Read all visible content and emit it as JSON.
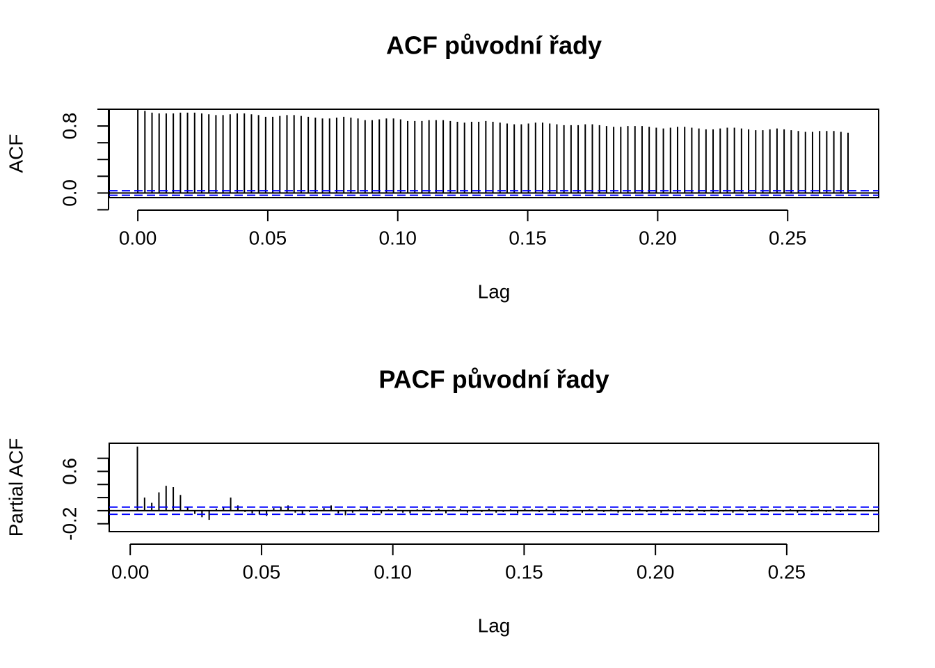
{
  "chart_data": [
    {
      "type": "bar",
      "title": "ACF původní řady",
      "xlabel": "Lag",
      "ylabel": "ACF",
      "xlim": [
        -0.011,
        0.285
      ],
      "ylim": [
        -0.055,
        1.0
      ],
      "x_ticks": [
        "0.00",
        "0.05",
        "0.10",
        "0.15",
        "0.20",
        "0.25"
      ],
      "y_ticks": [
        "0.0",
        "0.8"
      ],
      "confidence_band": 0.027,
      "x": [
        0,
        0.002732,
        0.005464,
        0.008197,
        0.010929,
        0.013661,
        0.016393,
        0.019126,
        0.021858,
        0.02459,
        0.027322,
        0.030055,
        0.032787,
        0.035519,
        0.038251,
        0.040984,
        0.043716,
        0.046448,
        0.04918,
        0.051913,
        0.054645,
        0.057377,
        0.060109,
        0.062842,
        0.065574,
        0.068306,
        0.071038,
        0.073771,
        0.076503,
        0.079235,
        0.081967,
        0.084699,
        0.087432,
        0.090164,
        0.092896,
        0.095628,
        0.098361,
        0.101093,
        0.103825,
        0.106557,
        0.10929,
        0.112022,
        0.114754,
        0.117486,
        0.120219,
        0.122951,
        0.125683,
        0.128415,
        0.131148,
        0.13388,
        0.136612,
        0.139344,
        0.142077,
        0.144809,
        0.147541,
        0.150273,
        0.153005,
        0.155738,
        0.15847,
        0.161202,
        0.163934,
        0.166667,
        0.169399,
        0.172131,
        0.174863,
        0.177596,
        0.180328,
        0.18306,
        0.185792,
        0.188525,
        0.191257,
        0.193989,
        0.196721,
        0.199454,
        0.202186,
        0.204918,
        0.20765,
        0.210383,
        0.213115,
        0.215847,
        0.218579,
        0.221311,
        0.224044,
        0.226776,
        0.229508,
        0.23224,
        0.234973,
        0.237705,
        0.240437,
        0.243169,
        0.245902,
        0.248634,
        0.251366,
        0.254098,
        0.256831,
        0.259563,
        0.262295,
        0.265027,
        0.26776,
        0.270492,
        0.273224
      ],
      "values": [
        1.0,
        0.98,
        0.96,
        0.95,
        0.95,
        0.95,
        0.96,
        0.96,
        0.96,
        0.95,
        0.94,
        0.93,
        0.93,
        0.94,
        0.95,
        0.95,
        0.94,
        0.93,
        0.91,
        0.91,
        0.92,
        0.93,
        0.93,
        0.92,
        0.91,
        0.9,
        0.89,
        0.89,
        0.9,
        0.91,
        0.9,
        0.89,
        0.87,
        0.87,
        0.88,
        0.89,
        0.89,
        0.88,
        0.86,
        0.86,
        0.86,
        0.87,
        0.87,
        0.87,
        0.86,
        0.85,
        0.84,
        0.85,
        0.85,
        0.86,
        0.85,
        0.84,
        0.83,
        0.82,
        0.82,
        0.83,
        0.84,
        0.84,
        0.83,
        0.82,
        0.81,
        0.81,
        0.81,
        0.82,
        0.82,
        0.81,
        0.8,
        0.79,
        0.79,
        0.8,
        0.8,
        0.8,
        0.79,
        0.78,
        0.77,
        0.78,
        0.79,
        0.79,
        0.78,
        0.77,
        0.76,
        0.76,
        0.77,
        0.78,
        0.78,
        0.77,
        0.76,
        0.75,
        0.75,
        0.76,
        0.77,
        0.76,
        0.75,
        0.74,
        0.73,
        0.73,
        0.74,
        0.74,
        0.74,
        0.73,
        0.72
      ]
    },
    {
      "type": "bar",
      "title": "PACF původní řady",
      "xlabel": "Lag",
      "ylabel": "Partial ACF",
      "xlim": [
        -0.008,
        0.285
      ],
      "ylim": [
        -0.32,
        1.03
      ],
      "x_ticks": [
        "0.00",
        "0.05",
        "0.10",
        "0.15",
        "0.20",
        "0.25"
      ],
      "y_ticks": [
        "-0.2",
        "0.6"
      ],
      "confidence_band": 0.055,
      "x": [
        0.002732,
        0.005464,
        0.008197,
        0.010929,
        0.013661,
        0.016393,
        0.019126,
        0.021858,
        0.02459,
        0.027322,
        0.030055,
        0.032787,
        0.035519,
        0.038251,
        0.040984,
        0.043716,
        0.046448,
        0.04918,
        0.051913,
        0.054645,
        0.057377,
        0.060109,
        0.062842,
        0.065574,
        0.068306,
        0.071038,
        0.073771,
        0.076503,
        0.079235,
        0.081967,
        0.084699,
        0.087432,
        0.090164,
        0.092896,
        0.095628,
        0.098361,
        0.101093,
        0.103825,
        0.106557,
        0.10929,
        0.112022,
        0.114754,
        0.117486,
        0.120219,
        0.122951,
        0.125683,
        0.128415,
        0.131148,
        0.13388,
        0.136612,
        0.139344,
        0.142077,
        0.144809,
        0.147541,
        0.150273,
        0.153005,
        0.155738,
        0.15847,
        0.161202,
        0.163934,
        0.166667,
        0.169399,
        0.172131,
        0.174863,
        0.177596,
        0.180328,
        0.18306,
        0.185792,
        0.188525,
        0.191257,
        0.193989,
        0.196721,
        0.199454,
        0.202186,
        0.204918,
        0.20765,
        0.210383,
        0.213115,
        0.215847,
        0.218579,
        0.221311,
        0.224044,
        0.226776,
        0.229508,
        0.23224,
        0.234973,
        0.237705,
        0.240437,
        0.243169,
        0.245902,
        0.248634,
        0.251366,
        0.254098,
        0.256831,
        0.259563,
        0.262295,
        0.265027,
        0.26776,
        0.270492,
        0.273224
      ],
      "values": [
        0.98,
        0.2,
        0.12,
        0.28,
        0.38,
        0.36,
        0.24,
        0.06,
        -0.05,
        -0.1,
        -0.14,
        0.03,
        0.06,
        0.2,
        0.08,
        -0.02,
        -0.04,
        -0.06,
        -0.08,
        0.04,
        0.06,
        0.08,
        -0.03,
        -0.06,
        -0.02,
        0.02,
        0.04,
        0.08,
        -0.04,
        -0.07,
        -0.03,
        0.02,
        0.05,
        -0.02,
        -0.04,
        0.02,
        0.03,
        -0.03,
        -0.04,
        0.02,
        0.03,
        -0.02,
        0.03,
        -0.04,
        0.02,
        0.03,
        -0.03,
        0.02,
        -0.02,
        0.03,
        -0.03,
        -0.02,
        0.02,
        -0.04,
        0.03,
        0.02,
        -0.02,
        0.03,
        -0.03,
        0.02,
        -0.02,
        0.02,
        -0.03,
        0.02,
        0.03,
        -0.02,
        0.02,
        -0.03,
        0.02,
        -0.02,
        0.03,
        -0.02,
        0.02,
        -0.03,
        0.02,
        -0.02,
        0.02,
        -0.02,
        0.03,
        -0.02,
        0.02,
        -0.02,
        0.02,
        -0.03,
        0.02,
        -0.02,
        0.02,
        0.03,
        -0.02,
        0.02,
        -0.02,
        0.02,
        -0.03,
        0.02,
        -0.02,
        0.02,
        -0.02,
        0.03,
        -0.02,
        0.02
      ]
    }
  ]
}
